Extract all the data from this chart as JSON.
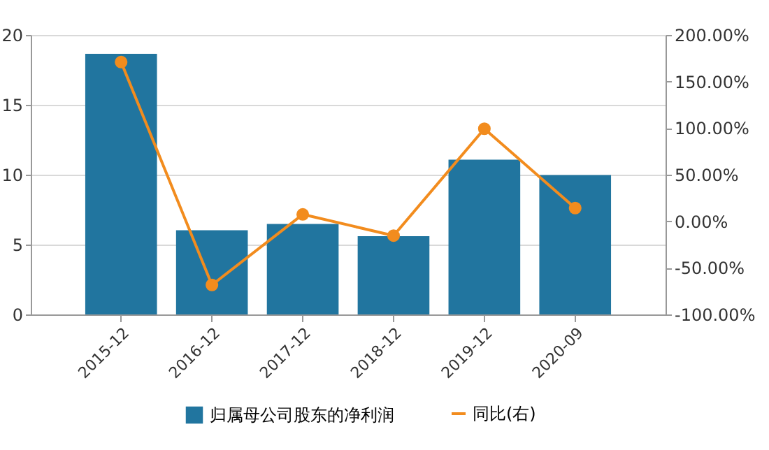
{
  "chart_data": {
    "type": "bar",
    "categories": [
      "2015-12",
      "2016-12",
      "2017-12",
      "2018-12",
      "2019-12",
      "2020-09"
    ],
    "series": [
      {
        "name": "归属母公司股东的净利润",
        "color": "#21759f",
        "values": [
          18.65,
          6.02,
          6.47,
          5.6,
          11.07,
          9.97
        ]
      },
      {
        "name": "同比(右)",
        "type": "line",
        "axis": "y2",
        "color": "#f28c1e",
        "marker": "circle",
        "values": [
          170.9,
          -68.3,
          7.4,
          -15.4,
          99.3,
          14.2
        ]
      }
    ],
    "ylim": [
      0,
      20
    ],
    "yticks": [
      0,
      5,
      10,
      15,
      20
    ],
    "y2lim": [
      -100,
      200
    ],
    "y2ticks": [
      {
        "value": -100,
        "label": "-100.00%"
      },
      {
        "value": -50,
        "label": "-50.00%"
      },
      {
        "value": 0,
        "label": "0.00%"
      },
      {
        "value": 50,
        "label": "50.00%"
      },
      {
        "value": 100,
        "label": "100.00%"
      },
      {
        "value": 150,
        "label": "150.00%"
      },
      {
        "value": 200,
        "label": "200.00%"
      }
    ],
    "grid": "y",
    "legend": "bottom"
  }
}
